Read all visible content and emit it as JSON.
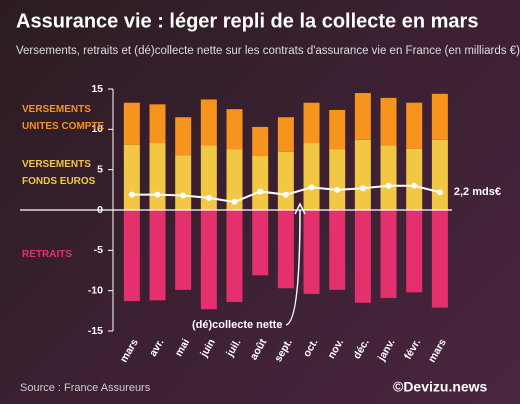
{
  "chart_data": {
    "type": "bar",
    "title": "Assurance vie : léger repli de la collecte en mars",
    "subtitle": "Versements, retraits et (dé)collecte nette sur les contrats d'assurance vie en France (en milliards €)",
    "categories": [
      "mars",
      "avr.",
      "mai",
      "juin",
      "juil.",
      "août",
      "sept.",
      "oct.",
      "nov.",
      "déc.",
      "janv.",
      "févr.",
      "mars"
    ],
    "series": [
      {
        "name": "VERSEMENTS FONDS EUROS",
        "color": "#f2c744",
        "values": [
          8.1,
          8.3,
          6.8,
          8.0,
          7.5,
          6.7,
          7.2,
          8.3,
          7.5,
          8.7,
          8.0,
          7.6,
          8.7
        ]
      },
      {
        "name": "VERSEMENTS UNITES COMPTE",
        "color": "#f7941d",
        "values": [
          5.2,
          4.8,
          4.7,
          5.7,
          5.0,
          3.6,
          4.3,
          5.0,
          4.9,
          5.8,
          5.9,
          5.7,
          5.7
        ]
      },
      {
        "name": "RETRAITS",
        "color": "#e5306e",
        "values": [
          -11.3,
          -11.2,
          -9.9,
          -12.3,
          -11.4,
          -8.1,
          -9.7,
          -10.4,
          -9.9,
          -11.5,
          -10.9,
          -10.2,
          -12.1
        ]
      },
      {
        "name": "(dé)collecte nette",
        "type": "line",
        "color": "#ffffff",
        "values": [
          1.9,
          1.9,
          1.8,
          1.5,
          1.0,
          2.3,
          1.9,
          2.8,
          2.5,
          2.7,
          3.0,
          3.0,
          2.2
        ],
        "value_labels": [
          null,
          null,
          null,
          null,
          null,
          null,
          null,
          null,
          null,
          null,
          null,
          null,
          "2,2 mds€"
        ]
      }
    ],
    "ylim": [
      -15,
      15
    ],
    "yticks": [
      15,
      10,
      5,
      0,
      -5,
      -10,
      -15
    ],
    "source": "Source : France Assureurs",
    "brand": "©Devizu.news"
  }
}
